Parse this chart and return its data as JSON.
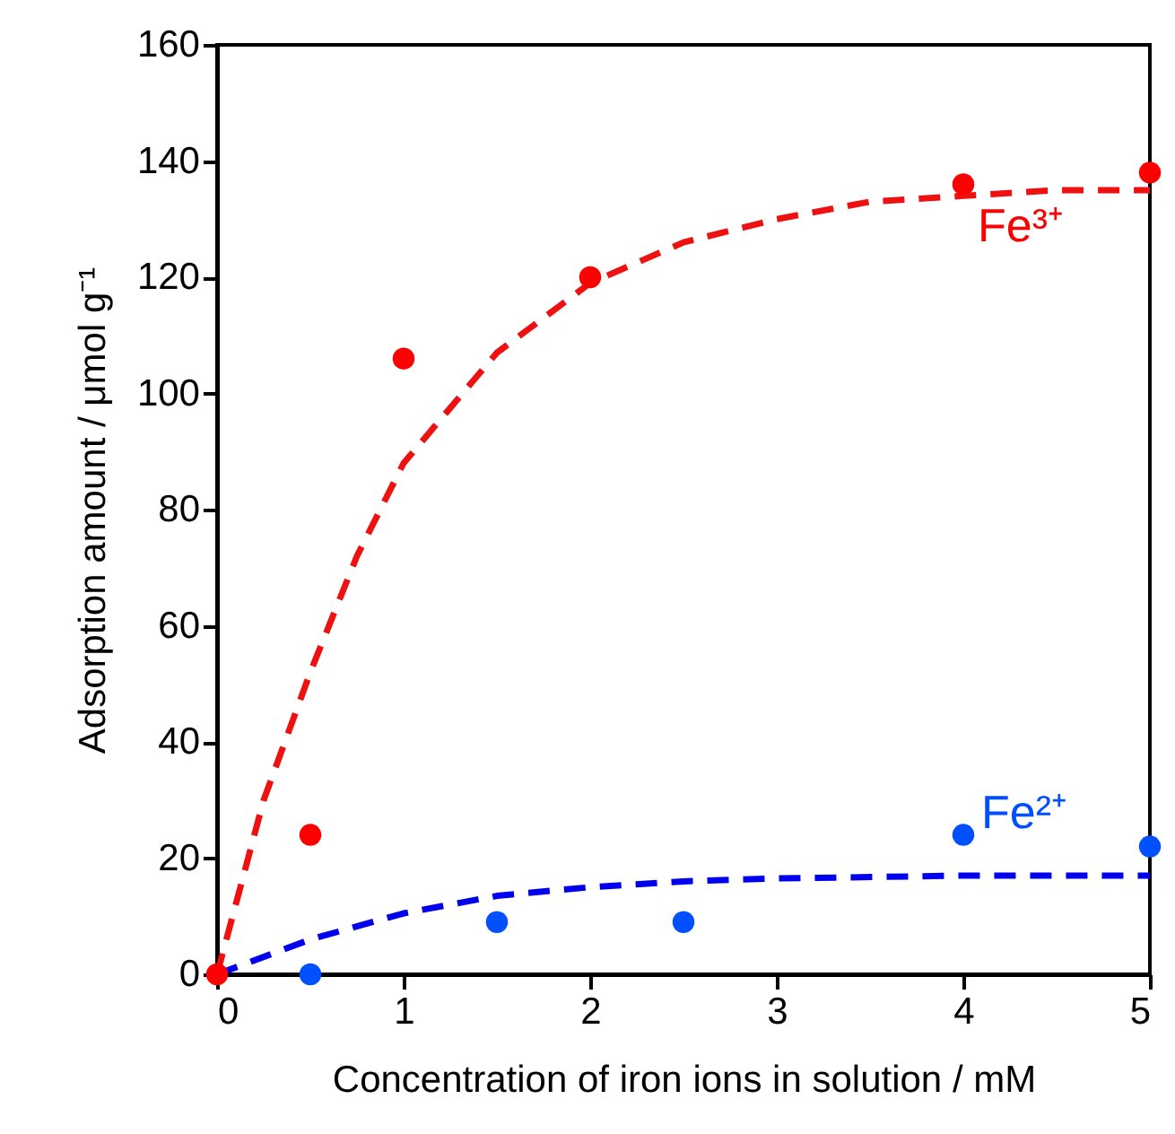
{
  "chart_data": {
    "type": "scatter",
    "xlabel": "Concentration of iron ions in solution / mM",
    "ylabel": "Adsorption amount / μmol g⁻¹",
    "xlim": [
      0,
      5
    ],
    "xticks": [
      0,
      1,
      2,
      3,
      4,
      5
    ],
    "ylim": [
      0,
      160
    ],
    "yticks": [
      0,
      20,
      40,
      60,
      80,
      100,
      120,
      140,
      160
    ],
    "grid": false,
    "marker": "circle",
    "series": [
      {
        "type": "line",
        "color": "#ee1111",
        "line_style": "dashed",
        "marker": "none",
        "x": [
          0,
          0.25,
          0.5,
          0.75,
          1,
          1.5,
          2,
          2.5,
          3,
          3.5,
          4,
          4.5,
          5
        ],
        "values": [
          0,
          30,
          52,
          72,
          88,
          107,
          119,
          126,
          130,
          133,
          134,
          135,
          135
        ]
      },
      {
        "type": "line",
        "color": "#0000ee",
        "line_style": "dashed",
        "marker": "none",
        "x": [
          0,
          0.5,
          1,
          1.5,
          2,
          2.5,
          3,
          4,
          5
        ],
        "values": [
          0,
          6,
          10.5,
          13.5,
          15,
          16,
          16.5,
          17,
          17
        ]
      },
      {
        "type": "scatter",
        "name": "Fe³⁺",
        "color": "#ff0000",
        "x": [
          0,
          0.5,
          1,
          2,
          4,
          5
        ],
        "values": [
          0,
          24,
          106,
          120,
          136,
          138
        ]
      },
      {
        "type": "scatter",
        "name": "Fe²⁺",
        "color": "#0050ff",
        "x": [
          0.5,
          1.5,
          2.5,
          4,
          5
        ],
        "values": [
          0,
          9,
          9,
          24,
          22
        ]
      }
    ]
  }
}
